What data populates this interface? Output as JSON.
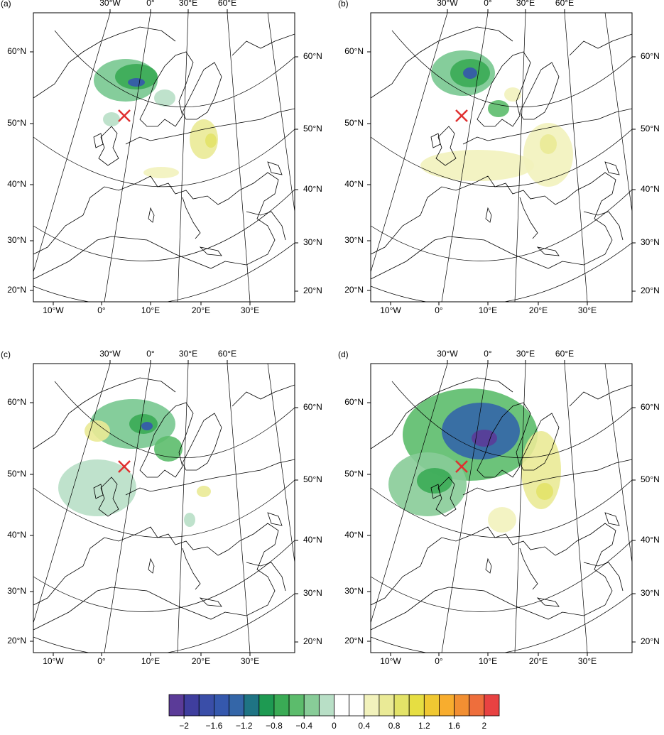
{
  "panels": [
    {
      "label": "(a)"
    },
    {
      "label": "(b)"
    },
    {
      "label": "(c)"
    },
    {
      "label": "(d)"
    }
  ],
  "axis_labels": {
    "top": [
      "30°W",
      "0°",
      "30°E",
      "60°E"
    ],
    "left": [
      "60°N",
      "50°N",
      "40°N",
      "30°N",
      "20°N"
    ],
    "right": [
      "60°N",
      "50°N",
      "40°N",
      "30°N",
      "20°N"
    ],
    "bottom": [
      "10°W",
      "0°",
      "10°E",
      "20°E",
      "30°E"
    ]
  },
  "colorbar": {
    "colors": [
      "#5b3b98",
      "#3f3e9e",
      "#3a4ea8",
      "#3558ad",
      "#3466a8",
      "#1f7484",
      "#1e9a52",
      "#3aab55",
      "#5cbc6c",
      "#88cc98",
      "#b8dfc6",
      "#ffffff",
      "#ffffff",
      "#f2f2bc",
      "#eaea96",
      "#e3e368",
      "#e6de42",
      "#f0c832",
      "#f8ad2e",
      "#f28f32",
      "#ee6e3c",
      "#e84242"
    ],
    "lim": [
      -2.2,
      2.2
    ],
    "ticks": [
      {
        "value": -2,
        "label": "−2"
      },
      {
        "value": -1.6,
        "label": "−1.6"
      },
      {
        "value": -1.2,
        "label": "−1.2"
      },
      {
        "value": -0.8,
        "label": "−0.8"
      },
      {
        "value": -0.4,
        "label": "−0.4"
      },
      0,
      0.4,
      0.8,
      1.2,
      1.6,
      2
    ]
  }
}
